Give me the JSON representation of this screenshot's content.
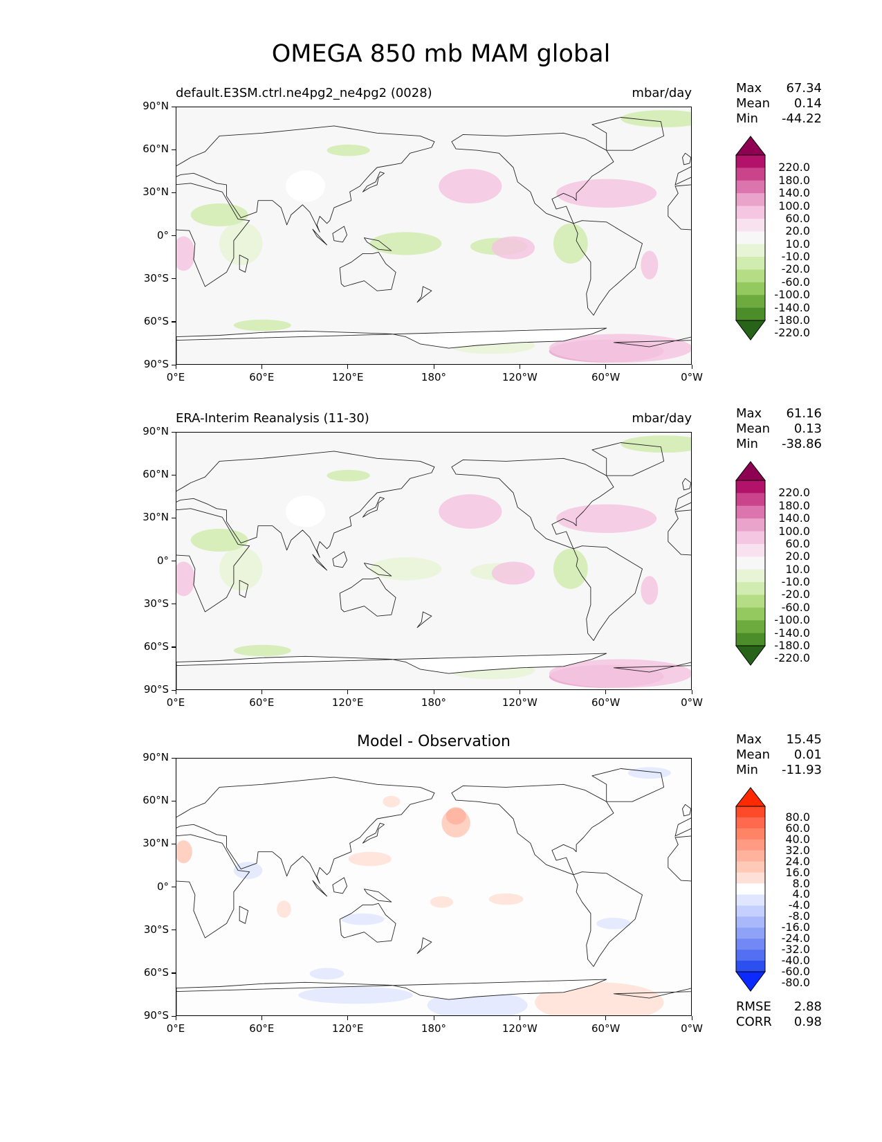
{
  "figure_title": "OMEGA 850 mb MAM global",
  "axes": {
    "lat_labels": [
      "90°N",
      "60°N",
      "30°N",
      "0°",
      "30°S",
      "60°S",
      "90°S"
    ],
    "lon_labels": [
      "0°E",
      "60°E",
      "120°E",
      "180°",
      "120°W",
      "60°W",
      "0°W"
    ]
  },
  "panels": [
    {
      "label": "default.E3SM.ctrl.ne4pg2_ne4pg2 (0028)",
      "units": "mbar/day",
      "center_title": "",
      "stats": {
        "max_label": "Max",
        "max": "67.34",
        "mean_label": "Mean",
        "mean": "0.14",
        "min_label": "Min",
        "min": "-44.22"
      },
      "colorbar": {
        "levels": [
          "220.0",
          "180.0",
          "140.0",
          "100.0",
          "60.0",
          "20.0",
          "10.0",
          "-10.0",
          "-20.0",
          "-60.0",
          "-100.0",
          "-140.0",
          "-180.0",
          "-220.0"
        ],
        "colors": [
          "#8e0152",
          "#b3126b",
          "#c9448a",
          "#dc75ad",
          "#eaa3cb",
          "#f4c6e1",
          "#f9e2ef",
          "#f7f7f7",
          "#e8f4d6",
          "#d1ecb0",
          "#b5dd85",
          "#94c95f",
          "#6eab3f",
          "#4b8d29",
          "#276419"
        ]
      },
      "extra_stats": null
    },
    {
      "label": "ERA-Interim Reanalysis (11-30)",
      "units": "mbar/day",
      "center_title": "",
      "stats": {
        "max_label": "Max",
        "max": "61.16",
        "mean_label": "Mean",
        "mean": "0.13",
        "min_label": "Min",
        "min": "-38.86"
      },
      "colorbar": {
        "levels": [
          "220.0",
          "180.0",
          "140.0",
          "100.0",
          "60.0",
          "20.0",
          "10.0",
          "-10.0",
          "-20.0",
          "-60.0",
          "-100.0",
          "-140.0",
          "-180.0",
          "-220.0"
        ],
        "colors": [
          "#8e0152",
          "#b3126b",
          "#c9448a",
          "#dc75ad",
          "#eaa3cb",
          "#f4c6e1",
          "#f9e2ef",
          "#f7f7f7",
          "#e8f4d6",
          "#d1ecb0",
          "#b5dd85",
          "#94c95f",
          "#6eab3f",
          "#4b8d29",
          "#276419"
        ]
      },
      "extra_stats": null
    },
    {
      "label": "",
      "units": "",
      "center_title": "Model - Observation",
      "stats": {
        "max_label": "Max",
        "max": "15.45",
        "mean_label": "Mean",
        "mean": "0.01",
        "min_label": "Min",
        "min": "-11.93"
      },
      "colorbar": {
        "levels": [
          "80.0",
          "60.0",
          "40.0",
          "32.0",
          "24.0",
          "16.0",
          "8.0",
          "4.0",
          "-4.0",
          "-8.0",
          "-16.0",
          "-24.0",
          "-32.0",
          "-40.0",
          "-60.0",
          "-80.0"
        ],
        "colors": [
          "#ff2a00",
          "#ff4a2a",
          "#ff6a4e",
          "#ff8466",
          "#ff9b82",
          "#ffb39e",
          "#ffc9b8",
          "#ffe0d6",
          "#ffffff",
          "#e0e6ff",
          "#c6d0ff",
          "#a9b8fb",
          "#8ea2f8",
          "#7289f5",
          "#5470f2",
          "#2c4ff0",
          "#0a2aff"
        ]
      },
      "extra_stats": {
        "rmse_label": "RMSE",
        "rmse": "2.88",
        "corr_label": "CORR",
        "corr": "0.98"
      }
    }
  ],
  "colors": {
    "map_background": "#f7f7f7",
    "diff_background": "#fdfdfd",
    "coast": "#222222"
  }
}
